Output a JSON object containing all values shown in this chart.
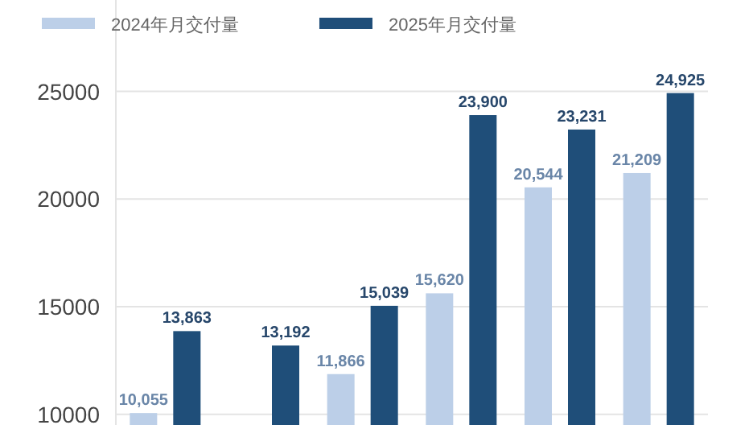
{
  "chart_data": {
    "type": "bar",
    "categories": [
      null,
      null,
      null,
      null,
      null,
      null
    ],
    "series": [
      {
        "name": "2024年月交付量",
        "color": "#bccfe8",
        "values": [
          10055,
          null,
          11866,
          15620,
          20544,
          21209
        ],
        "value_labels": [
          "10,055",
          null,
          "11,866",
          "15,620",
          "20,544",
          "21,209"
        ]
      },
      {
        "name": "2025年月交付量",
        "color": "#1f4e79",
        "values": [
          13863,
          13192,
          15039,
          23900,
          23231,
          24925
        ],
        "value_labels": [
          "13,863",
          "13,192",
          "15,039",
          "23,900",
          "23,231",
          "24,925"
        ]
      }
    ],
    "ylim": [
      9500,
      29250
    ],
    "yticks": [
      10000,
      15000,
      20000,
      25000
    ],
    "grid": "y",
    "legend": "top left"
  }
}
